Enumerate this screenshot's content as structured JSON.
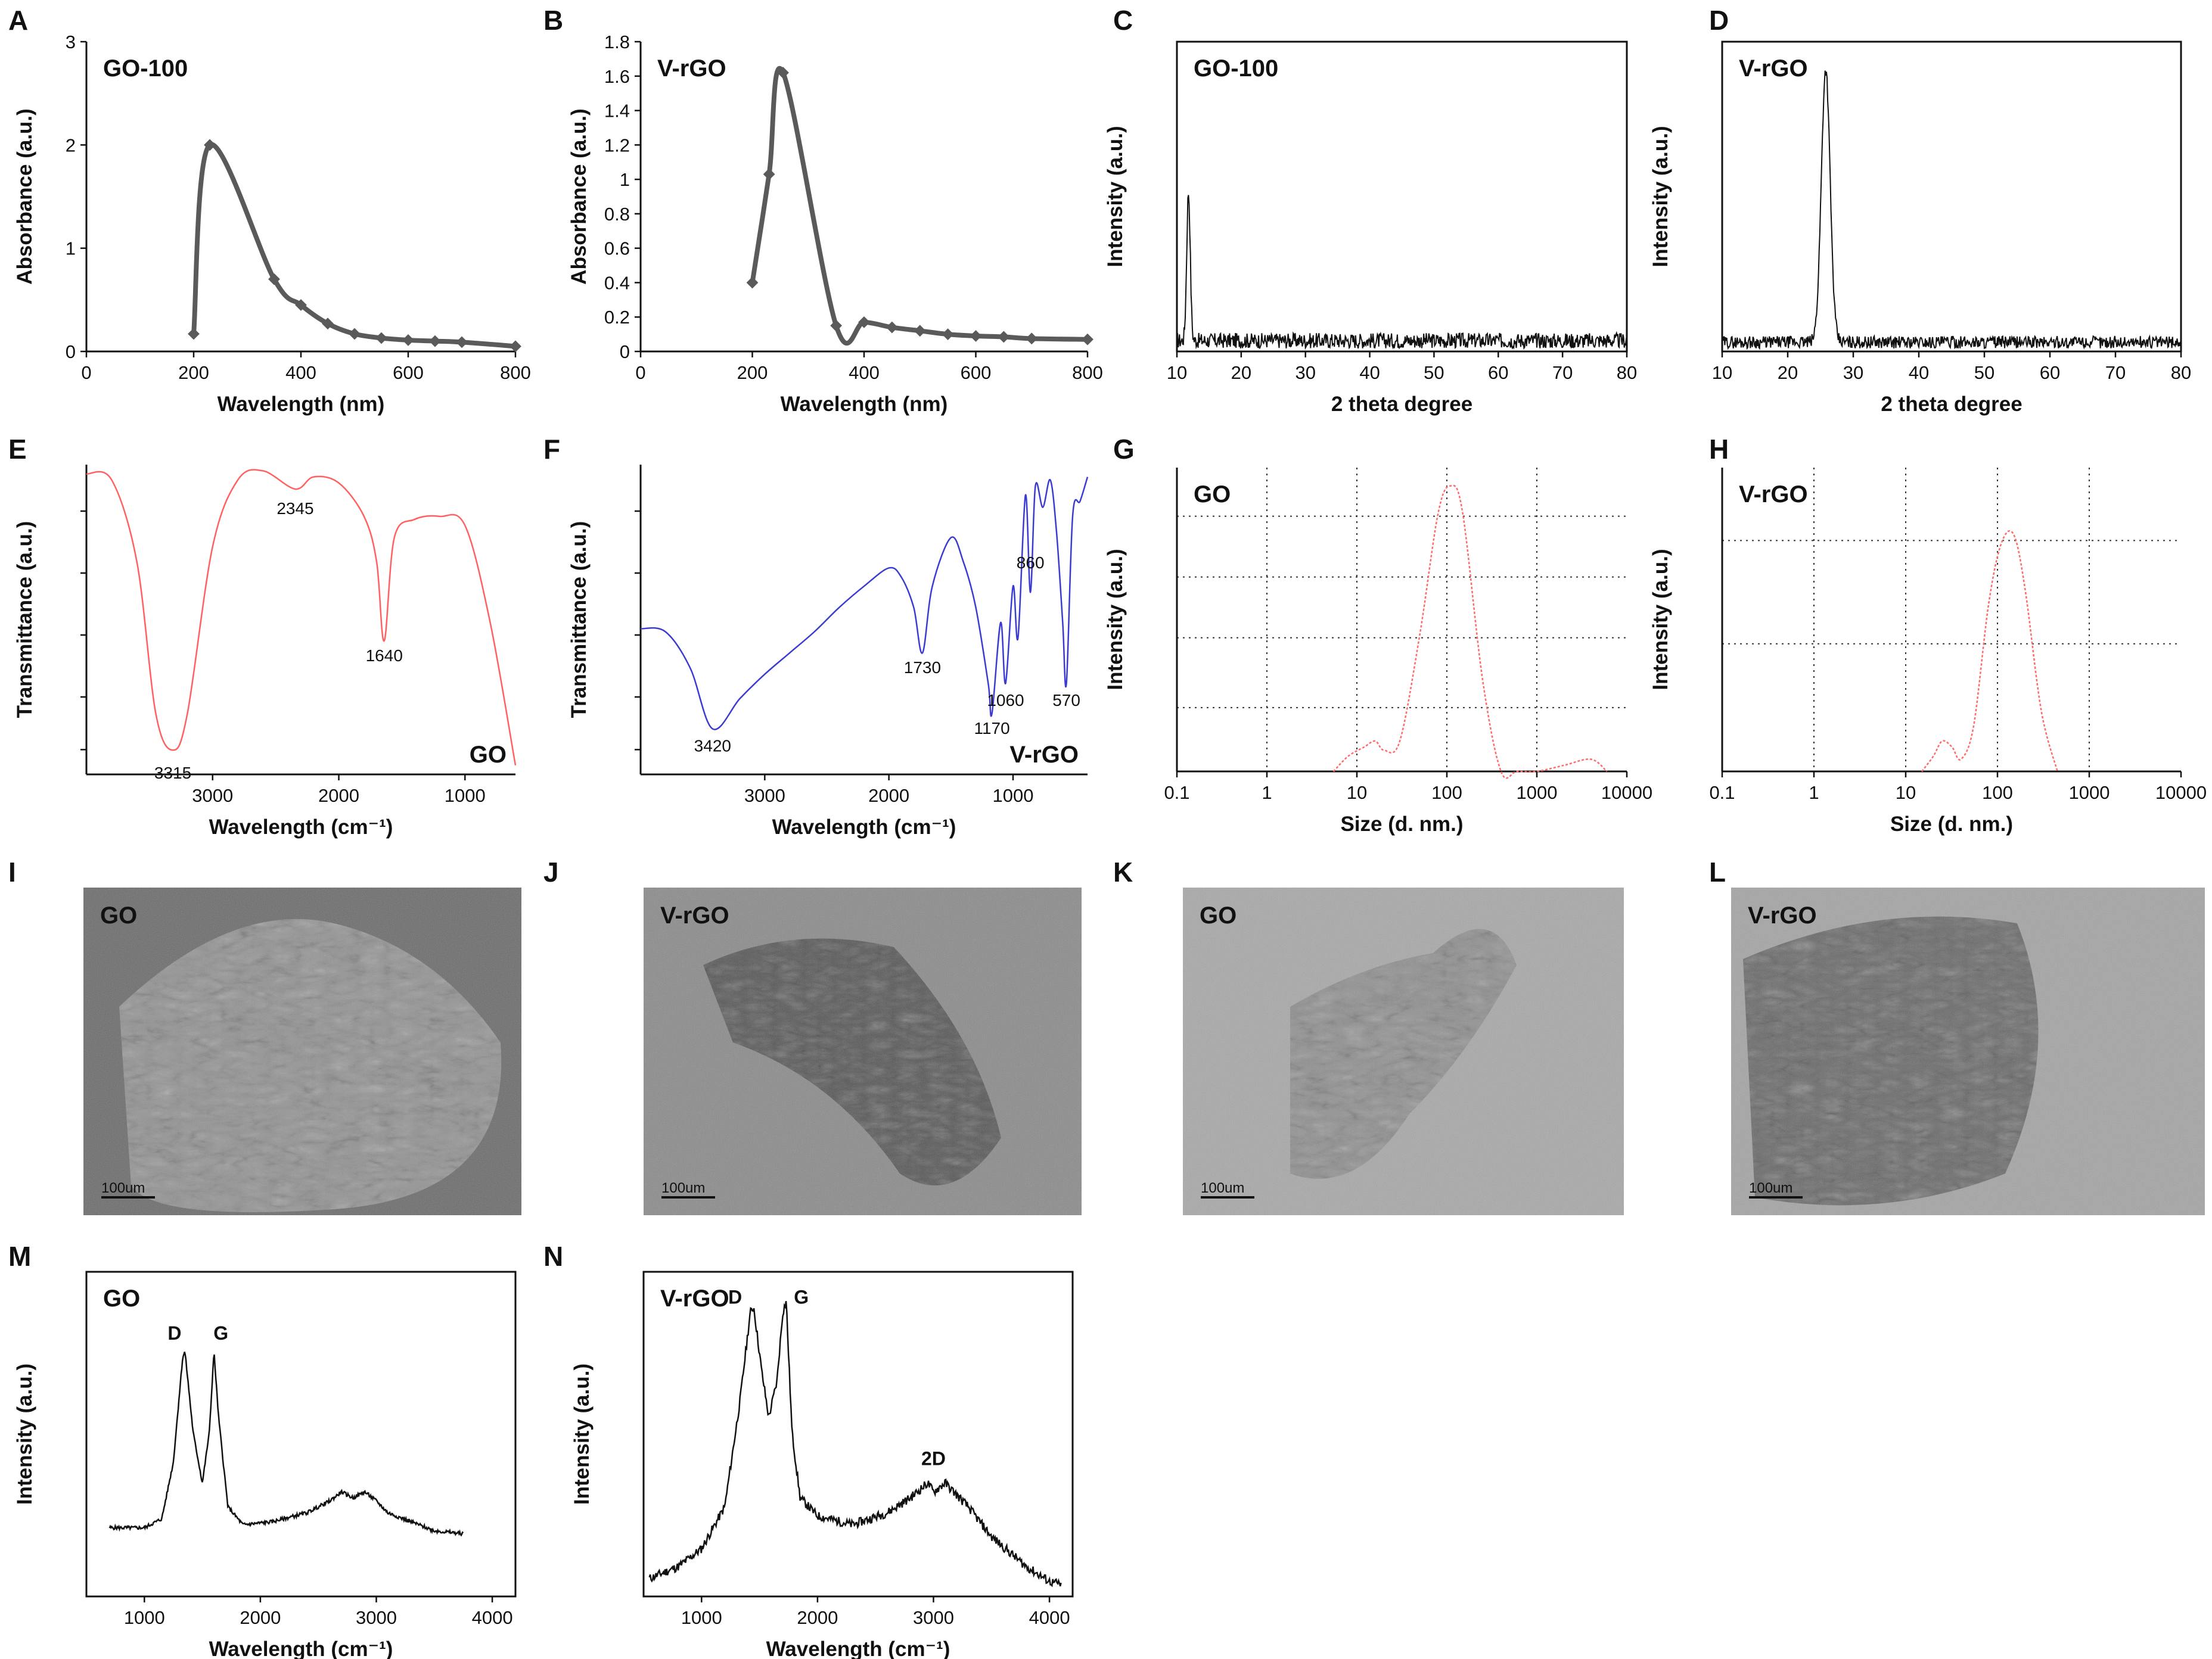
{
  "panel_letters": [
    "A",
    "B",
    "C",
    "D",
    "E",
    "F",
    "G",
    "H",
    "I",
    "J",
    "K",
    "L",
    "M",
    "N"
  ],
  "colors": {
    "uv": "#5a5a5a",
    "ftir_go": "#ff6060",
    "ftir_vrgo": "#3b3bd0",
    "dls": "#ff6a6a",
    "xrd": "#111111",
    "raman": "#111111"
  },
  "chart_data": [
    {
      "id": "A",
      "type": "line",
      "title": "GO-100",
      "xlabel": "Wavelength (nm)",
      "ylabel": "Absorbance (a.u.)",
      "xlim": [
        0,
        800
      ],
      "ylim": [
        0,
        3
      ],
      "xticks": [
        0,
        200,
        400,
        600,
        800
      ],
      "yticks": [
        0,
        1,
        2,
        3
      ],
      "x": [
        200,
        230,
        350,
        400,
        450,
        500,
        550,
        600,
        650,
        700,
        800
      ],
      "y": [
        0.17,
        2.0,
        0.7,
        0.45,
        0.27,
        0.17,
        0.13,
        0.11,
        0.1,
        0.09,
        0.05
      ]
    },
    {
      "id": "B",
      "type": "line",
      "title": "V-rGO",
      "xlabel": "Wavelength (nm)",
      "ylabel": "Absorbance (a.u.)",
      "xlim": [
        0,
        800
      ],
      "ylim": [
        0,
        1.8
      ],
      "xticks": [
        0,
        200,
        400,
        600,
        800
      ],
      "yticks": [
        0,
        0.2,
        0.4,
        0.6,
        0.8,
        1,
        1.2,
        1.4,
        1.6,
        1.8
      ],
      "x": [
        200,
        230,
        255,
        350,
        400,
        450,
        500,
        550,
        600,
        650,
        700,
        800
      ],
      "y": [
        0.4,
        1.03,
        1.62,
        0.15,
        0.17,
        0.14,
        0.12,
        0.1,
        0.09,
        0.085,
        0.075,
        0.07
      ]
    },
    {
      "id": "C",
      "type": "line",
      "title": "GO-100",
      "xlabel": "2 theta degree",
      "ylabel": "Intensity (a.u.)",
      "xlim": [
        10,
        80
      ],
      "xticks": [
        10,
        20,
        30,
        40,
        50,
        60,
        70,
        80
      ],
      "peaks": [
        {
          "x": 11.8,
          "y": 0.48
        }
      ],
      "noise_level": 0.05
    },
    {
      "id": "D",
      "type": "line",
      "title": "V-rGO",
      "xlabel": "2 theta degree",
      "ylabel": "Intensity (a.u.)",
      "xlim": [
        10,
        80
      ],
      "xticks": [
        10,
        20,
        30,
        40,
        50,
        60,
        70,
        80
      ],
      "peaks": [
        {
          "x": 25.8,
          "y": 0.88
        }
      ],
      "noise_level": 0.04
    },
    {
      "id": "E",
      "type": "line",
      "title": "GO",
      "xlabel": "Wavelength (cm⁻¹)",
      "ylabel": "Transmittance (a.u.)",
      "xlim": [
        4000,
        600
      ],
      "xticks": [
        3000,
        2000,
        1000
      ],
      "x": [
        4000,
        3800,
        3600,
        3450,
        3315,
        3200,
        3000,
        2800,
        2600,
        2345,
        2200,
        2000,
        1800,
        1700,
        1640,
        1560,
        1400,
        1200,
        1000,
        800,
        600
      ],
      "y": [
        0.99,
        0.97,
        0.7,
        0.2,
        0.08,
        0.2,
        0.75,
        0.97,
        1.0,
        0.94,
        0.98,
        0.96,
        0.85,
        0.7,
        0.44,
        0.78,
        0.84,
        0.85,
        0.82,
        0.5,
        0.03
      ],
      "annotations": [
        "3315",
        "2345",
        "1640"
      ]
    },
    {
      "id": "F",
      "type": "line",
      "title": "V-rGO",
      "xlabel": "Wavelength (cm⁻¹)",
      "ylabel": "Transmittance (a.u.)",
      "xlim": [
        4000,
        400
      ],
      "xticks": [
        3000,
        2000,
        1000
      ],
      "x": [
        4000,
        3800,
        3600,
        3420,
        3200,
        3000,
        2800,
        2600,
        2400,
        2200,
        2000,
        1900,
        1800,
        1730,
        1650,
        1500,
        1400,
        1300,
        1200,
        1170,
        1100,
        1060,
        1000,
        960,
        900,
        860,
        820,
        760,
        700,
        650,
        600,
        570,
        520,
        460,
        400
      ],
      "y": [
        0.48,
        0.47,
        0.35,
        0.15,
        0.25,
        0.33,
        0.4,
        0.47,
        0.55,
        0.62,
        0.68,
        0.65,
        0.55,
        0.4,
        0.62,
        0.78,
        0.7,
        0.55,
        0.3,
        0.2,
        0.5,
        0.3,
        0.62,
        0.45,
        0.92,
        0.6,
        0.95,
        0.88,
        0.97,
        0.8,
        0.5,
        0.3,
        0.85,
        0.9,
        0.98
      ],
      "annotations": [
        "3420",
        "1730",
        "1170",
        "1060",
        "860",
        "570"
      ]
    },
    {
      "id": "G",
      "type": "line",
      "title": "GO",
      "xlabel": "Size (d. nm.)",
      "ylabel": "Intensity (a.u.)",
      "xscale": "log",
      "xlim": [
        0.1,
        10000
      ],
      "xticks": [
        0.1,
        1,
        10,
        100,
        1000,
        10000
      ],
      "xtick_labels": [
        "0.1",
        "1",
        "10",
        "100",
        "1000",
        "10000"
      ],
      "x": [
        5.5,
        8,
        12,
        16,
        20,
        30,
        50,
        80,
        110,
        150,
        250,
        400,
        600,
        1000,
        2000,
        4000,
        6000
      ],
      "y": [
        0.0,
        0.05,
        0.08,
        0.1,
        0.07,
        0.1,
        0.45,
        0.85,
        0.94,
        0.85,
        0.3,
        0.0,
        0.0,
        0.0,
        0.02,
        0.04,
        0.0
      ]
    },
    {
      "id": "H",
      "type": "line",
      "title": "V-rGO",
      "xlabel": "Size (d. nm.)",
      "ylabel": "Intensity (a.u.)",
      "xscale": "log",
      "xlim": [
        0.1,
        10000
      ],
      "xticks": [
        0.1,
        1,
        10,
        100,
        1000,
        10000
      ],
      "xtick_labels": [
        "0.1",
        "1",
        "10",
        "100",
        "1000",
        "10000"
      ],
      "x": [
        15,
        20,
        25,
        32,
        40,
        55,
        80,
        110,
        150,
        200,
        300,
        450
      ],
      "y": [
        0.0,
        0.05,
        0.1,
        0.08,
        0.04,
        0.15,
        0.55,
        0.75,
        0.78,
        0.6,
        0.2,
        0.0
      ]
    },
    {
      "id": "M",
      "type": "line",
      "title": "GO",
      "xlabel": "Wavelength (cm⁻¹)",
      "ylabel": "Intensity (a.u.)",
      "xlim": [
        500,
        4200
      ],
      "xticks": [
        1000,
        2000,
        3000,
        4000
      ],
      "x": [
        700,
        1000,
        1150,
        1250,
        1330,
        1350,
        1420,
        1500,
        1560,
        1600,
        1640,
        1720,
        1850,
        2100,
        2400,
        2600,
        2700,
        2800,
        2900,
        3000,
        3100,
        3300,
        3500,
        3750
      ],
      "y": [
        0.23,
        0.23,
        0.26,
        0.45,
        0.8,
        0.82,
        0.55,
        0.38,
        0.55,
        0.82,
        0.6,
        0.3,
        0.24,
        0.25,
        0.28,
        0.32,
        0.35,
        0.33,
        0.35,
        0.32,
        0.28,
        0.25,
        0.22,
        0.21
      ],
      "annotations": [
        "D",
        "G"
      ]
    },
    {
      "id": "N",
      "type": "line",
      "title": "V-rGO",
      "xlabel": "Wavelength (cm⁻¹)",
      "ylabel": "Intensity (a.u.)",
      "xlim": [
        500,
        4200
      ],
      "xticks": [
        1000,
        2000,
        3000,
        4000
      ],
      "x": [
        550,
        800,
        1000,
        1200,
        1330,
        1420,
        1450,
        1520,
        1580,
        1650,
        1700,
        1730,
        1780,
        1850,
        2000,
        2300,
        2600,
        2800,
        2950,
        3000,
        3100,
        3150,
        3300,
        3500,
        3800,
        4000,
        4100
      ],
      "y": [
        0.06,
        0.1,
        0.16,
        0.3,
        0.65,
        0.95,
        0.97,
        0.75,
        0.6,
        0.72,
        0.95,
        0.99,
        0.55,
        0.33,
        0.27,
        0.24,
        0.28,
        0.33,
        0.38,
        0.35,
        0.38,
        0.36,
        0.3,
        0.2,
        0.1,
        0.05,
        0.04
      ],
      "annotations": [
        "D",
        "G",
        "2D"
      ]
    }
  ],
  "images": [
    {
      "id": "I",
      "title": "GO",
      "scalebar": "100um"
    },
    {
      "id": "J",
      "title": "V-rGO",
      "scalebar": "100um"
    },
    {
      "id": "K",
      "title": "GO",
      "scalebar": "100um"
    },
    {
      "id": "L",
      "title": "V-rGO",
      "scalebar": "100um"
    }
  ]
}
